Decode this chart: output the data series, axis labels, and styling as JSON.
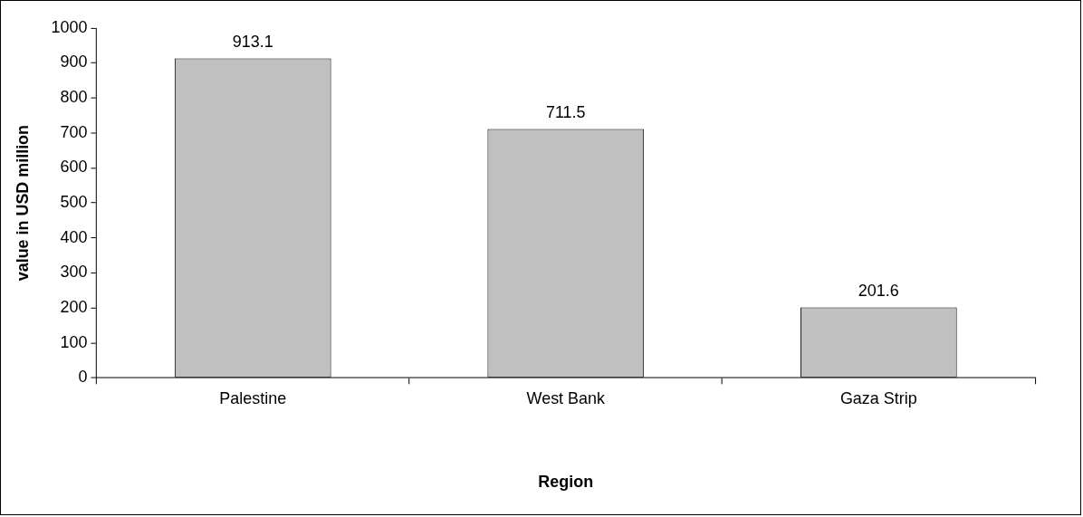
{
  "chart_data": {
    "type": "bar",
    "xlabel": "Region",
    "ylabel": "value in USD million",
    "categories": [
      "Palestine",
      "West Bank",
      "Gaza Strip"
    ],
    "values": [
      913.1,
      711.5,
      201.6
    ],
    "color": "#c0c0c0",
    "ylim": [
      0,
      1000
    ],
    "yticks": [
      0,
      100,
      200,
      300,
      400,
      500,
      600,
      700,
      800,
      900,
      1000
    ],
    "grid": false,
    "legend": false,
    "data_labels": true
  }
}
